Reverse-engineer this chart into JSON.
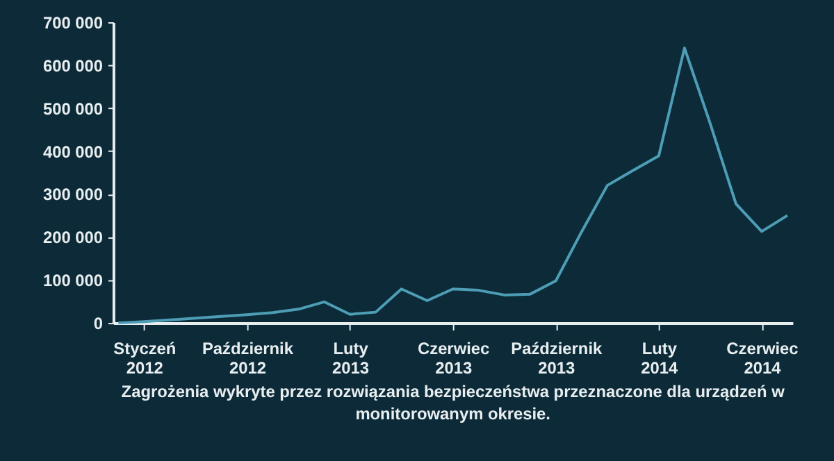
{
  "chart_data": {
    "type": "line",
    "categories": [
      null,
      "Styczeń 2012",
      null,
      null,
      null,
      "Październik 2012",
      null,
      null,
      null,
      "Luty 2013",
      null,
      null,
      null,
      "Czerwiec 2013",
      null,
      null,
      null,
      "Październik 2013",
      null,
      null,
      null,
      "Luty 2014",
      null,
      null,
      null,
      "Czerwiec 2014",
      null
    ],
    "series": [
      {
        "color": "#4d9db5",
        "values": [
          0,
          3000,
          7000,
          11000,
          15000,
          19000,
          24000,
          32000,
          49000,
          20000,
          25000,
          79000,
          52000,
          79000,
          76000,
          65000,
          67000,
          98000,
          212000,
          320000,
          355000,
          389000,
          640000,
          464000,
          277000,
          213000,
          250000
        ]
      }
    ],
    "ylim": [
      0,
      700000
    ],
    "yticks": [
      {
        "value": 0,
        "label": "0"
      },
      {
        "value": 100000,
        "label": "100 000"
      },
      {
        "value": 200000,
        "label": "200 000"
      },
      {
        "value": 300000,
        "label": "300 000"
      },
      {
        "value": 400000,
        "label": "400 000"
      },
      {
        "value": 500000,
        "label": "500 000"
      },
      {
        "value": 600000,
        "label": "600 000"
      },
      {
        "value": 700000,
        "label": "700 000"
      }
    ],
    "grid": false,
    "marker": "none",
    "line_style": "solid",
    "annotations": [
      "Zagrożenia wykryte przez rozwiązania bezpieczeństwa przeznaczone dla urządzeń w monitorowanym okresie."
    ]
  }
}
